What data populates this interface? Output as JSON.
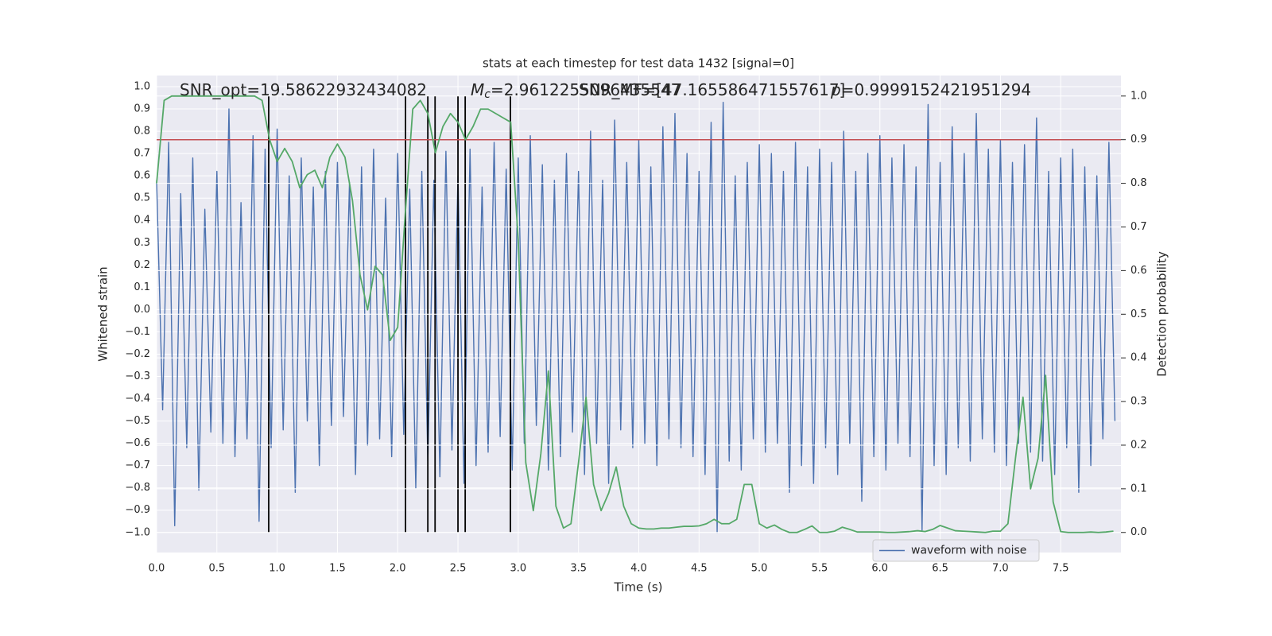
{
  "chart_data": {
    "type": "line",
    "title": "stats at each timestep for test data 1432 [signal=0]",
    "xlabel": "Time (s)",
    "ylabel": "Whitened strain",
    "y2label": "Detection probability",
    "xlim": [
      0,
      8.0
    ],
    "ylim": [
      -1.09,
      1.05
    ],
    "y2lim": [
      -0.046,
      1.047
    ],
    "xticks": [
      {
        "value": 0,
        "label": "0.0"
      },
      0.5,
      {
        "value": 1,
        "label": "1.0"
      },
      1.5,
      {
        "value": 2,
        "label": "2.0"
      },
      2.5,
      {
        "value": 3,
        "label": "3.0"
      },
      3.5,
      {
        "value": 4,
        "label": "4.0"
      },
      4.5,
      {
        "value": 5,
        "label": "5.0"
      },
      5.5,
      {
        "value": 6,
        "label": "6.0"
      },
      6.5,
      {
        "value": 7,
        "label": "7.0"
      },
      7.5
    ],
    "yticks": [
      {
        "value": -1,
        "label": "−1.0"
      },
      {
        "value": -0.9,
        "label": "−0.9"
      },
      {
        "value": -0.8,
        "label": "−0.8"
      },
      {
        "value": -0.7,
        "label": "−0.7"
      },
      {
        "value": -0.6,
        "label": "−0.6"
      },
      {
        "value": -0.5,
        "label": "−0.5"
      },
      {
        "value": -0.4,
        "label": "−0.4"
      },
      {
        "value": -0.3,
        "label": "−0.3"
      },
      {
        "value": -0.2,
        "label": "−0.2"
      },
      {
        "value": -0.1,
        "label": "−0.1"
      },
      {
        "value": 0,
        "label": "0.0"
      },
      0.1,
      0.2,
      0.3,
      0.4,
      0.5,
      0.6,
      0.7,
      0.8,
      0.9,
      {
        "value": 1,
        "label": "1.0"
      }
    ],
    "y2ticks": [
      {
        "value": 0,
        "label": "0.0"
      },
      0.1,
      0.2,
      0.3,
      0.4,
      0.5,
      0.6,
      0.7,
      0.8,
      0.9,
      {
        "value": 1,
        "label": "1.0"
      }
    ],
    "grid": true,
    "legend": "lower right",
    "annotations": [
      {
        "text": "SNR_opt=19.58622932434082"
      },
      {
        "symbol": "M",
        "subscript": "c",
        "text": "=2.9612255096435547"
      },
      {
        "text": "SNR_MF=[47.165586471557617]"
      },
      {
        "symbol": "p",
        "text": "=0.9999152421951294"
      }
    ],
    "hlines": [
      {
        "value": 0.9,
        "axis": "y2",
        "color": "#c44e52"
      }
    ],
    "vlines": {
      "values": [
        0.93,
        2.065,
        2.25,
        2.31,
        2.5,
        2.56,
        2.935
      ],
      "ymin": 0,
      "ymax": 1,
      "axis": "y2",
      "color": "#000000"
    },
    "series": [
      {
        "name": "waveform with noise",
        "color": "#4c72b0",
        "x": [
          0,
          0.05,
          0.1,
          0.15,
          0.2,
          0.25,
          0.3,
          0.35,
          0.4,
          0.45,
          0.5,
          0.55,
          0.6,
          0.65,
          0.7,
          0.75,
          0.8,
          0.85,
          0.9,
          0.95,
          1,
          1.05,
          1.1,
          1.15,
          1.2,
          1.25,
          1.3,
          1.35,
          1.4,
          1.45,
          1.5,
          1.55,
          1.6,
          1.65,
          1.7,
          1.75,
          1.8,
          1.85,
          1.9,
          1.95,
          2,
          2.05,
          2.1,
          2.15,
          2.2,
          2.25,
          2.3,
          2.35,
          2.4,
          2.45,
          2.5,
          2.55,
          2.6,
          2.65,
          2.7,
          2.75,
          2.8,
          2.85,
          2.9,
          2.95,
          3,
          3.05,
          3.1,
          3.15,
          3.2,
          3.25,
          3.3,
          3.35,
          3.4,
          3.45,
          3.5,
          3.55,
          3.6,
          3.65,
          3.7,
          3.75,
          3.8,
          3.85,
          3.9,
          3.95,
          4,
          4.05,
          4.1,
          4.15,
          4.2,
          4.25,
          4.3,
          4.35,
          4.4,
          4.45,
          4.5,
          4.55,
          4.6,
          4.65,
          4.7,
          4.75,
          4.8,
          4.85,
          4.9,
          4.95,
          5,
          5.05,
          5.1,
          5.15,
          5.2,
          5.25,
          5.3,
          5.35,
          5.4,
          5.45,
          5.5,
          5.55,
          5.6,
          5.65,
          5.7,
          5.75,
          5.8,
          5.85,
          5.9,
          5.95,
          6,
          6.05,
          6.1,
          6.15,
          6.2,
          6.25,
          6.3,
          6.35,
          6.4,
          6.45,
          6.5,
          6.55,
          6.6,
          6.65,
          6.7,
          6.75,
          6.8,
          6.85,
          6.9,
          6.95,
          7,
          7.05,
          7.1,
          7.15,
          7.2,
          7.25,
          7.3,
          7.35,
          7.4,
          7.45,
          7.5,
          7.55,
          7.6,
          7.65,
          7.7,
          7.75,
          7.8,
          7.85,
          7.9,
          7.95
        ],
        "values": [
          0.58,
          -0.45,
          0.75,
          -0.97,
          0.52,
          -0.62,
          0.68,
          -0.81,
          0.45,
          -0.55,
          0.62,
          -0.6,
          0.9,
          -0.66,
          0.48,
          -0.58,
          0.78,
          -0.95,
          0.72,
          -0.62,
          0.81,
          -0.54,
          0.6,
          -0.82,
          0.68,
          -0.5,
          0.55,
          -0.7,
          0.62,
          -0.52,
          0.66,
          -0.48,
          0.57,
          -0.74,
          0.64,
          -0.61,
          0.72,
          -0.58,
          0.5,
          -0.66,
          0.7,
          -0.56,
          0.54,
          -0.8,
          0.62,
          -0.68,
          0.58,
          -0.75,
          0.71,
          -0.63,
          0.6,
          -0.78,
          0.72,
          -0.7,
          0.55,
          -0.64,
          0.75,
          -0.57,
          0.63,
          -0.72,
          0.68,
          -0.6,
          0.78,
          -0.52,
          0.65,
          -0.72,
          0.58,
          -0.66,
          0.7,
          -0.55,
          0.62,
          -0.74,
          0.8,
          -0.6,
          0.58,
          -0.78,
          0.85,
          -0.54,
          0.66,
          -0.62,
          0.76,
          -0.6,
          0.64,
          -0.7,
          0.82,
          -0.58,
          0.88,
          -0.62,
          0.7,
          -0.66,
          0.62,
          -0.74,
          0.84,
          -1.0,
          0.93,
          -0.68,
          0.6,
          -0.72,
          0.66,
          -0.58,
          0.74,
          -0.64,
          0.7,
          -0.6,
          0.62,
          -0.82,
          0.75,
          -0.7,
          0.64,
          -0.78,
          0.72,
          -0.62,
          0.66,
          -0.74,
          0.8,
          -0.6,
          0.62,
          -0.86,
          0.7,
          -0.66,
          0.78,
          -0.72,
          0.68,
          -0.6,
          0.74,
          -0.66,
          0.64,
          -0.99,
          0.92,
          -0.7,
          0.66,
          -0.74,
          0.82,
          -0.62,
          0.7,
          -0.68,
          0.88,
          -0.58,
          0.72,
          -0.64,
          0.76,
          -0.7,
          0.66,
          -0.6,
          0.74,
          -0.64,
          0.86,
          -0.68,
          0.62,
          -0.74,
          0.68,
          -0.62,
          0.72,
          -0.82,
          0.64,
          -0.7,
          0.6,
          -0.58,
          0.75,
          -0.5
        ]
      },
      {
        "color": "#55a868",
        "axis": "y2",
        "x": [
          0,
          0.0625,
          0.125,
          0.1875,
          0.25,
          0.3125,
          0.375,
          0.4375,
          0.5,
          0.5625,
          0.625,
          0.6875,
          0.75,
          0.8125,
          0.875,
          0.9375,
          1,
          1.0625,
          1.125,
          1.1875,
          1.25,
          1.3125,
          1.375,
          1.4375,
          1.5,
          1.5625,
          1.625,
          1.6875,
          1.75,
          1.8125,
          1.875,
          1.9375,
          2,
          2.0625,
          2.125,
          2.1875,
          2.25,
          2.3125,
          2.375,
          2.4375,
          2.5,
          2.5625,
          2.625,
          2.6875,
          2.75,
          2.8125,
          2.875,
          2.9375,
          3,
          3.0625,
          3.125,
          3.1875,
          3.25,
          3.3125,
          3.375,
          3.4375,
          3.5,
          3.5625,
          3.625,
          3.6875,
          3.75,
          3.8125,
          3.875,
          3.9375,
          4,
          4.0625,
          4.125,
          4.1875,
          4.25,
          4.3125,
          4.375,
          4.4375,
          4.5,
          4.5625,
          4.625,
          4.6875,
          4.75,
          4.8125,
          4.875,
          4.9375,
          5,
          5.0625,
          5.125,
          5.1875,
          5.25,
          5.3125,
          5.375,
          5.4375,
          5.5,
          5.5625,
          5.625,
          5.6875,
          5.75,
          5.8125,
          5.875,
          5.9375,
          6,
          6.0625,
          6.125,
          6.1875,
          6.25,
          6.3125,
          6.375,
          6.4375,
          6.5,
          6.5625,
          6.625,
          6.6875,
          6.75,
          6.8125,
          6.875,
          6.9375,
          7,
          7.0625,
          7.125,
          7.1875,
          7.25,
          7.3125,
          7.375,
          7.4375,
          7.5,
          7.5625,
          7.625,
          7.6875,
          7.75,
          7.8125,
          7.875,
          7.9375
        ],
        "values": [
          0.8,
          0.99,
          1.0,
          1.0,
          1.0,
          1.0,
          1.0,
          1.0,
          1.0,
          1.0,
          1.0,
          1.0,
          1.0,
          1.0,
          0.99,
          0.9,
          0.85,
          0.88,
          0.85,
          0.79,
          0.82,
          0.83,
          0.79,
          0.86,
          0.89,
          0.86,
          0.76,
          0.59,
          0.51,
          0.61,
          0.59,
          0.44,
          0.47,
          0.73,
          0.97,
          0.99,
          0.96,
          0.87,
          0.93,
          0.96,
          0.94,
          0.9,
          0.93,
          0.97,
          0.97,
          0.96,
          0.95,
          0.94,
          0.67,
          0.16,
          0.05,
          0.18,
          0.37,
          0.06,
          0.01,
          0.02,
          0.16,
          0.31,
          0.11,
          0.05,
          0.09,
          0.15,
          0.06,
          0.02,
          0.01,
          0.008,
          0.008,
          0.01,
          0.01,
          0.012,
          0.014,
          0.014,
          0.015,
          0.02,
          0.03,
          0.02,
          0.02,
          0.03,
          0.11,
          0.11,
          0.02,
          0.01,
          0.017,
          0.007,
          0.0,
          0.0,
          0.007,
          0.015,
          0.0,
          0.0,
          0.003,
          0.012,
          0.007,
          0.001,
          0.001,
          0.001,
          0.001,
          0.0,
          0.0,
          0.001,
          0.002,
          0.004,
          0.002,
          0.007,
          0.016,
          0.01,
          0.004,
          0.003,
          0.002,
          0.001,
          0.0,
          0.003,
          0.003,
          0.02,
          0.17,
          0.31,
          0.1,
          0.17,
          0.36,
          0.07,
          0.002,
          0.0,
          0.0,
          0.0,
          0.001,
          0.0,
          0.001,
          0.003
        ]
      }
    ]
  }
}
